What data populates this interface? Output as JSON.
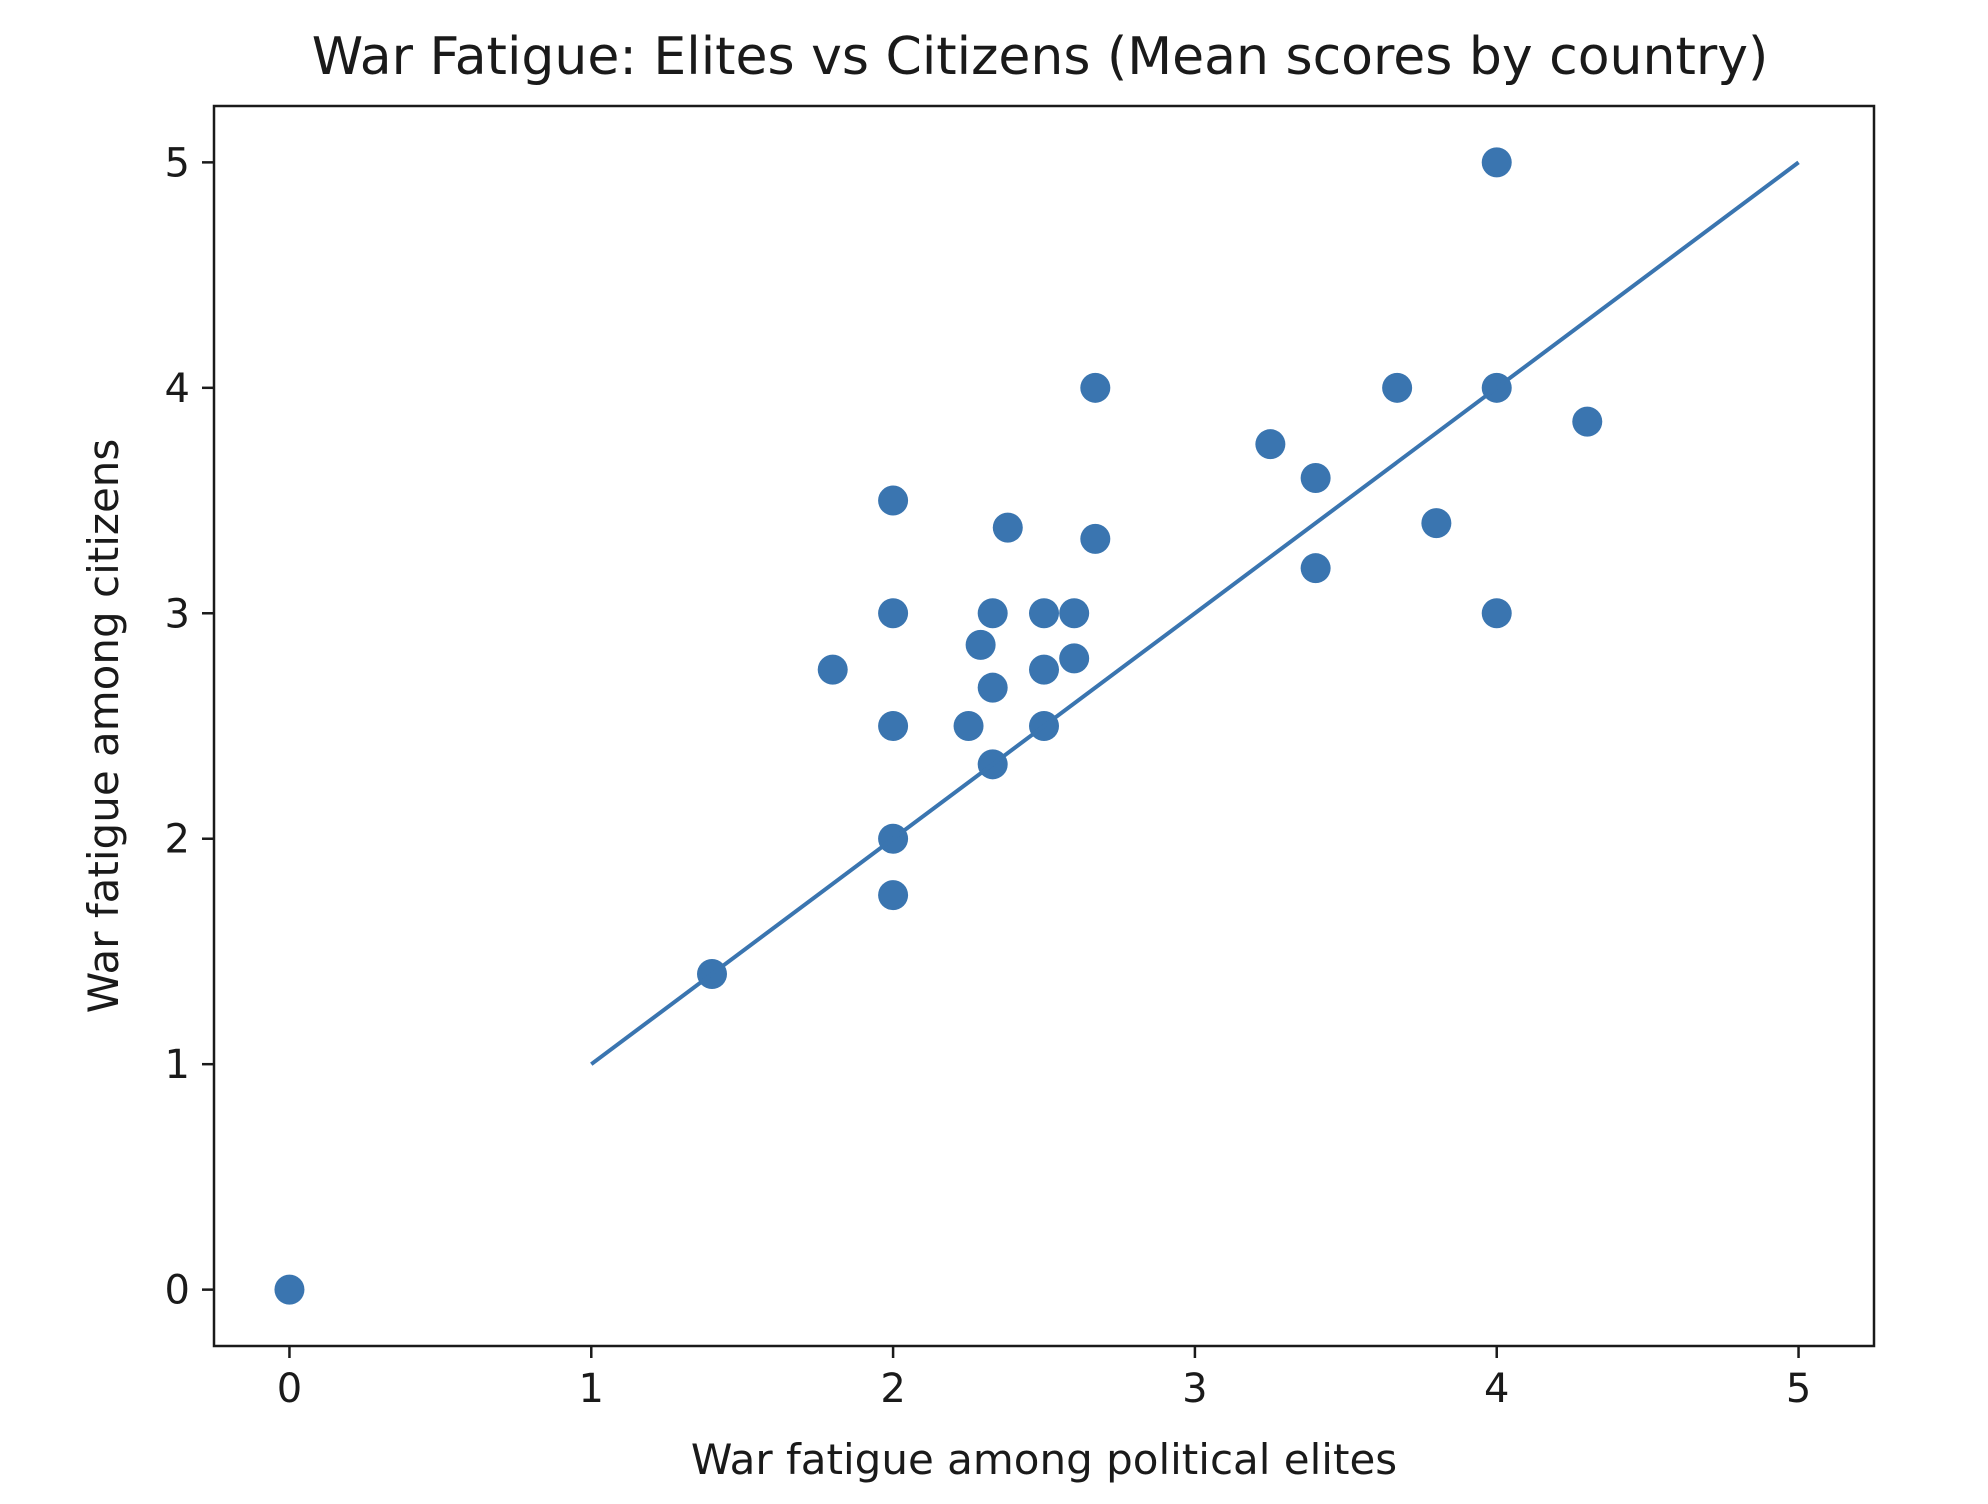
{
  "chart_data": {
    "type": "scatter",
    "title": "War Fatigue: Elites vs Citizens (Mean scores by country)",
    "xlabel": "War fatigue among political elites",
    "ylabel": "War fatigue among citizens",
    "xlim": [
      -0.25,
      5.25
    ],
    "ylim": [
      -0.25,
      5.25
    ],
    "xticks": [
      "0",
      "1",
      "2",
      "3",
      "4",
      "5"
    ],
    "yticks": [
      "0",
      "1",
      "2",
      "3",
      "4",
      "5"
    ],
    "grid": false,
    "point_color": "#3a75b0",
    "line_color": "#3a75b0",
    "reference_line": {
      "x": [
        1,
        5
      ],
      "y": [
        1,
        5
      ]
    },
    "points": [
      {
        "x": 0,
        "y": 0
      },
      {
        "x": 1.4,
        "y": 1.4
      },
      {
        "x": 1.8,
        "y": 2.75
      },
      {
        "x": 2.0,
        "y": 3.5
      },
      {
        "x": 2.0,
        "y": 3.0
      },
      {
        "x": 2.0,
        "y": 2.5
      },
      {
        "x": 2.0,
        "y": 2.0
      },
      {
        "x": 2.0,
        "y": 1.75
      },
      {
        "x": 2.25,
        "y": 2.5
      },
      {
        "x": 2.29,
        "y": 2.86
      },
      {
        "x": 2.33,
        "y": 3.0
      },
      {
        "x": 2.33,
        "y": 2.67
      },
      {
        "x": 2.33,
        "y": 2.33
      },
      {
        "x": 2.38,
        "y": 3.38
      },
      {
        "x": 2.5,
        "y": 3.0
      },
      {
        "x": 2.5,
        "y": 2.75
      },
      {
        "x": 2.5,
        "y": 2.5
      },
      {
        "x": 2.6,
        "y": 3.0
      },
      {
        "x": 2.6,
        "y": 2.8
      },
      {
        "x": 2.67,
        "y": 4.0
      },
      {
        "x": 2.67,
        "y": 3.33
      },
      {
        "x": 3.25,
        "y": 3.75
      },
      {
        "x": 3.4,
        "y": 3.6
      },
      {
        "x": 3.4,
        "y": 3.2
      },
      {
        "x": 3.67,
        "y": 4.0
      },
      {
        "x": 3.8,
        "y": 3.4
      },
      {
        "x": 4.0,
        "y": 5.0
      },
      {
        "x": 4.0,
        "y": 4.0
      },
      {
        "x": 4.0,
        "y": 3.0
      },
      {
        "x": 4.3,
        "y": 3.85
      }
    ]
  }
}
